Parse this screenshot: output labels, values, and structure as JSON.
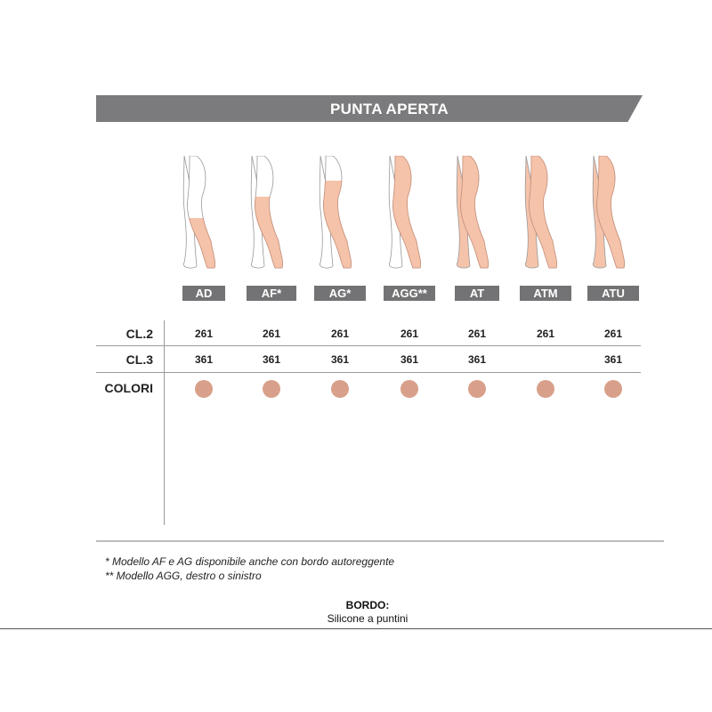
{
  "title": "PUNTA APERTA",
  "colors": {
    "banner": "#7b7b7d",
    "skin": "#f5c3aa",
    "swatch": "#d8a08a"
  },
  "models": [
    {
      "code": "AD",
      "cl2": "261",
      "cl3": "361",
      "fill": "knee"
    },
    {
      "code": "AF*",
      "cl2": "261",
      "cl3": "361",
      "fill": "mid-thigh"
    },
    {
      "code": "AG*",
      "cl2": "261",
      "cl3": "361",
      "fill": "thigh"
    },
    {
      "code": "AGG**",
      "cl2": "261",
      "cl3": "361",
      "fill": "single-leg-full"
    },
    {
      "code": "AT",
      "cl2": "261",
      "cl3": "361",
      "fill": "full"
    },
    {
      "code": "ATM",
      "cl2": "261",
      "cl3": "",
      "fill": "full-maternity"
    },
    {
      "code": "ATU",
      "cl2": "261",
      "cl3": "361",
      "fill": "full"
    }
  ],
  "rows": {
    "cl2": "CL.2",
    "cl3": "CL.3",
    "colori": "COLORI"
  },
  "footnotes": [
    "*  Modello AF e AG disponibile anche con bordo autoreggente",
    "**  Modello AGG, destro o sinistro"
  ],
  "bordo": {
    "label": "BORDO:",
    "value": "Silicone a puntini"
  }
}
